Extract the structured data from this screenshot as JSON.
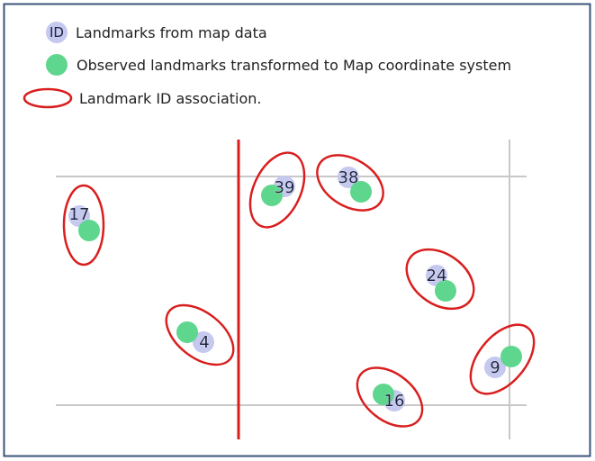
{
  "legend": {
    "id_marker_text": "ID",
    "map_landmarks_label": "Landmarks from map data",
    "observed_label": "Observed landmarks transformed to Map coordinate system",
    "association_label": "Landmark ID association."
  },
  "colors": {
    "map_landmark_fill": "#c5c8ef",
    "observed_fill": "#5fd68e",
    "association_ring": "#d91e1e",
    "vertical_rule": "#d91e1e",
    "grid_line": "#c8c8c8",
    "frame_border": "#3b557a"
  },
  "landmarks": [
    {
      "id": "17",
      "mark": "17"
    },
    {
      "id": "4",
      "mark": "4"
    },
    {
      "id": "39",
      "mark": "39"
    },
    {
      "id": "38",
      "mark": "38"
    },
    {
      "id": "24",
      "mark": "24"
    },
    {
      "id": "9",
      "mark": "9"
    },
    {
      "id": "16",
      "mark": "16"
    }
  ]
}
